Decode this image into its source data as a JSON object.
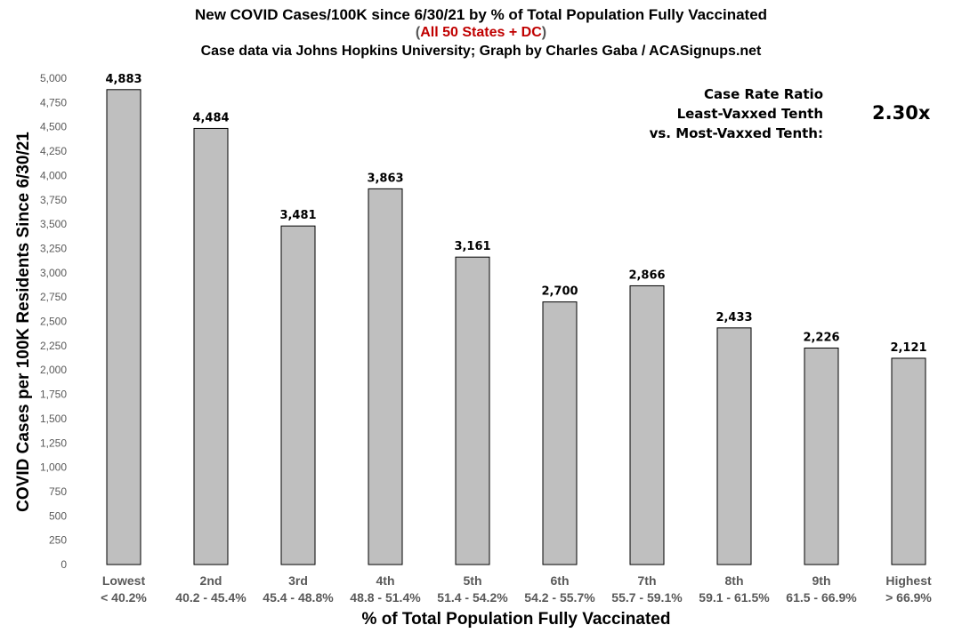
{
  "header": {
    "title": "New COVID Cases/100K since 6/30/21 by % of Total Population Fully Vaccinated",
    "subtitle_open": "(",
    "subtitle_main": "All 50 States + DC",
    "subtitle_close": ")",
    "credit": "Case data via Johns Hopkins University; Graph by Charles Gaba / ACASignups.net"
  },
  "annotation": {
    "line1": "Case Rate Ratio",
    "line2": "Least-Vaxxed Tenth",
    "line3": "vs. Most-Vaxxed Tenth:",
    "value": "2.30x"
  },
  "colors": {
    "bar_fill": "#bfbfbf",
    "bar_stroke": "#000000",
    "subtitle_red": "#c00000",
    "axis_text": "#595959"
  },
  "chart_data": {
    "type": "bar",
    "title": "New COVID Cases/100K since 6/30/21 by % of Total Population Fully Vaccinated",
    "xlabel": "% of Total Population Fully Vaccinated",
    "ylabel": "COVID Cases per 100K Residents Since 6/30/21",
    "ylim": [
      0,
      5000
    ],
    "ytick_step": 250,
    "yticks": [
      "0",
      "250",
      "500",
      "750",
      "1,000",
      "1,250",
      "1,500",
      "1,750",
      "2,000",
      "2,250",
      "2,500",
      "2,750",
      "3,000",
      "3,250",
      "3,500",
      "3,750",
      "4,000",
      "4,250",
      "4,500",
      "4,750",
      "5,000"
    ],
    "categories": [
      "Lowest",
      "2nd",
      "3rd",
      "4th",
      "5th",
      "6th",
      "7th",
      "8th",
      "9th",
      "Highest"
    ],
    "category_ranges": [
      "< 40.2%",
      "40.2 - 45.4%",
      "45.4 - 48.8%",
      "48.8 - 51.4%",
      "51.4 - 54.2%",
      "54.2 - 55.7%",
      "55.7 - 59.1%",
      "59.1 - 61.5%",
      "61.5 - 66.9%",
      "> 66.9%"
    ],
    "values": [
      4883,
      4484,
      3481,
      3863,
      3161,
      2700,
      2866,
      2433,
      2226,
      2121
    ],
    "value_labels": [
      "4,883",
      "4,484",
      "3,481",
      "3,863",
      "3,161",
      "2,700",
      "2,866",
      "2,433",
      "2,226",
      "2,121"
    ],
    "grid": false,
    "legend": "none"
  }
}
